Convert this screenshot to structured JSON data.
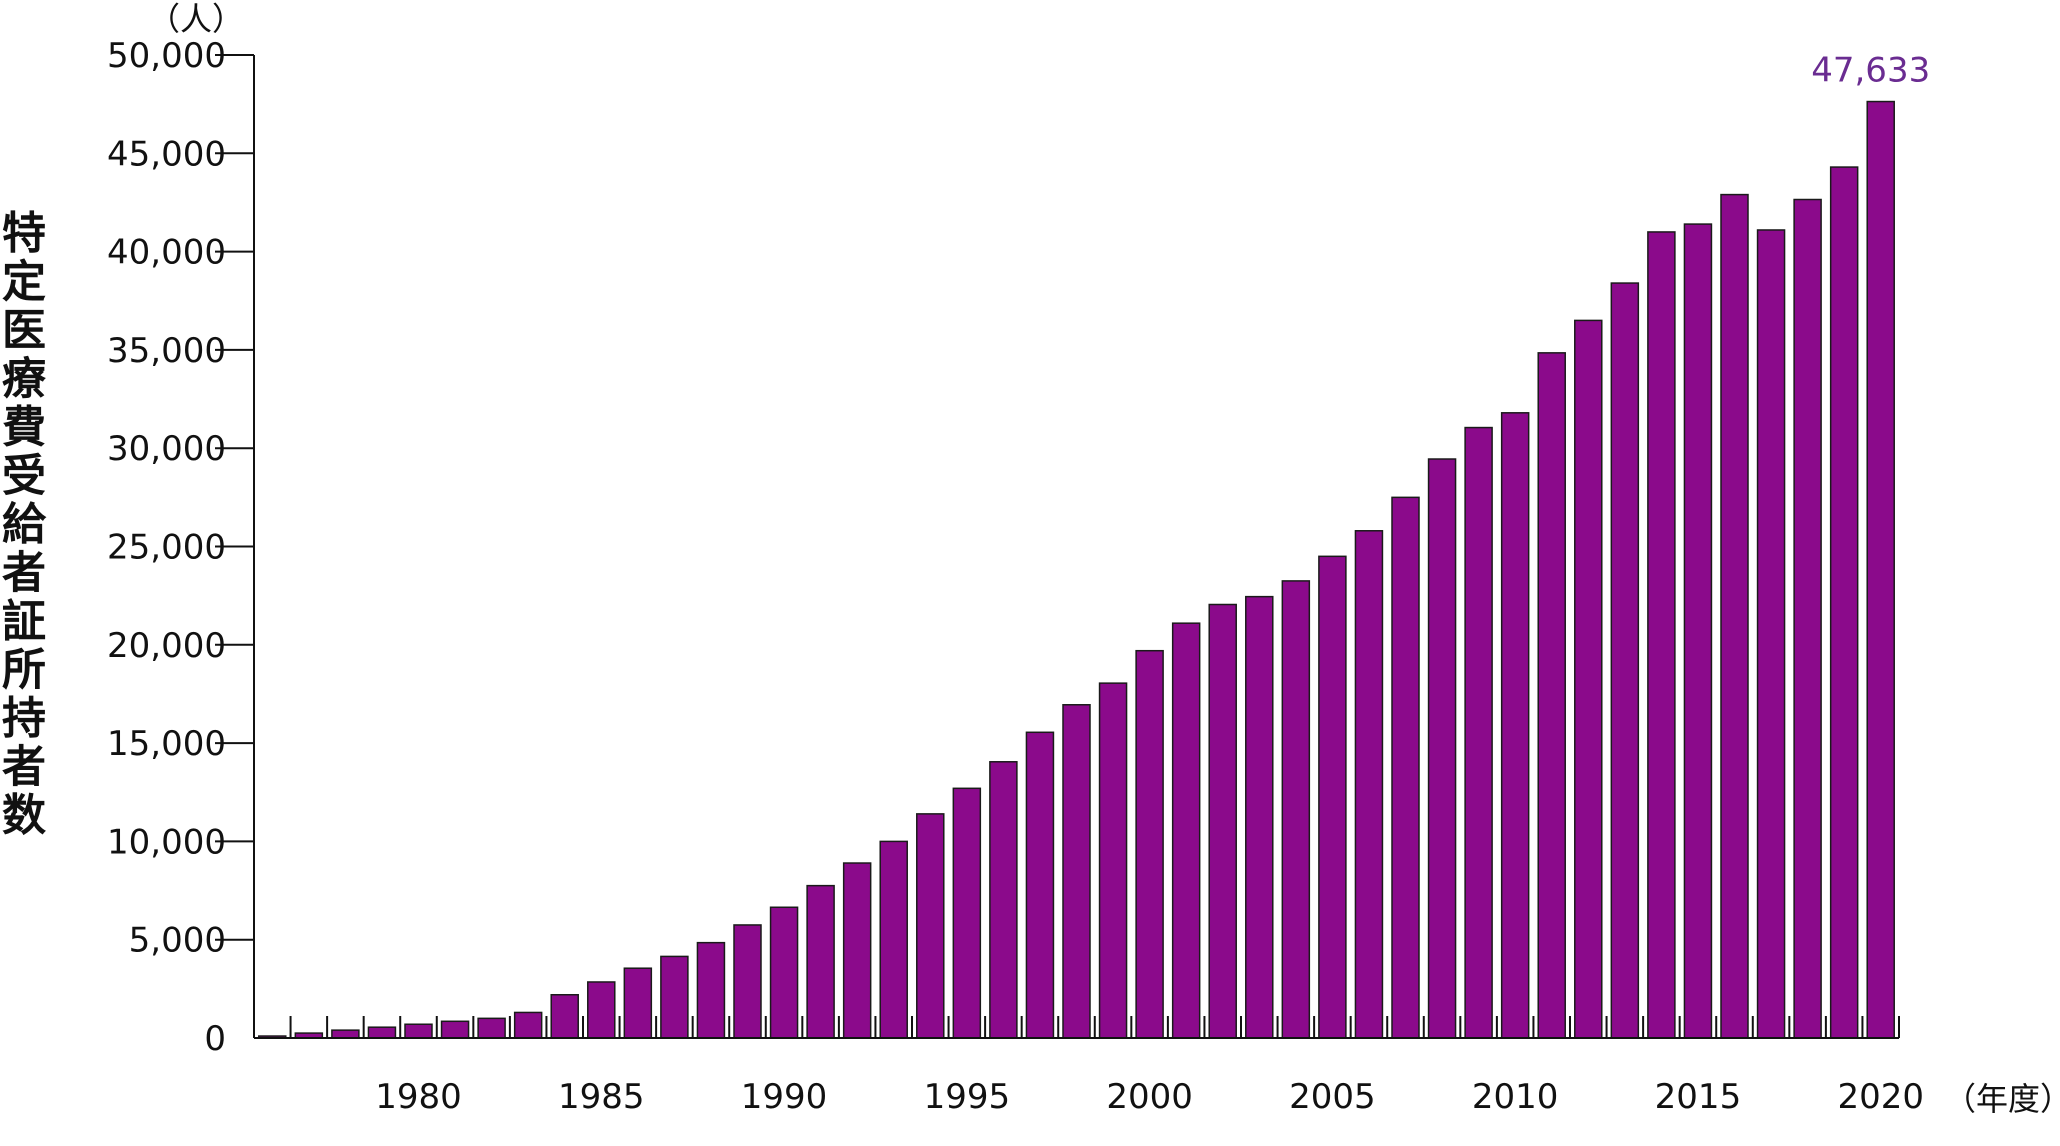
{
  "chart_data": {
    "type": "bar",
    "title": "",
    "ylabel": "特定医療費受給者証所持者数",
    "y_unit": "（人）",
    "x_unit": "（年度）",
    "ylim": [
      0,
      50000
    ],
    "yticks": [
      0,
      5000,
      10000,
      15000,
      20000,
      25000,
      30000,
      35000,
      40000,
      45000,
      50000
    ],
    "ytick_labels": [
      "0",
      "5,000",
      "10,000",
      "15,000",
      "20,000",
      "25,000",
      "30,000",
      "35,000",
      "40,000",
      "45,000",
      "50,000"
    ],
    "xtick_labels": [
      "1980",
      "1985",
      "1990",
      "1995",
      "2000",
      "2005",
      "2010",
      "2015",
      "2020"
    ],
    "categories": [
      1976,
      1977,
      1978,
      1979,
      1980,
      1981,
      1982,
      1983,
      1984,
      1985,
      1986,
      1987,
      1988,
      1989,
      1990,
      1991,
      1992,
      1993,
      1994,
      1995,
      1996,
      1997,
      1998,
      1999,
      2000,
      2001,
      2002,
      2003,
      2004,
      2005,
      2006,
      2007,
      2008,
      2009,
      2010,
      2011,
      2012,
      2013,
      2014,
      2015,
      2016,
      2017,
      2018,
      2019,
      2020
    ],
    "values": [
      100,
      250,
      400,
      550,
      700,
      850,
      1000,
      1300,
      2200,
      2850,
      3550,
      4150,
      4850,
      5750,
      6650,
      7750,
      8900,
      10000,
      11400,
      12700,
      14050,
      15550,
      16950,
      18050,
      19700,
      21100,
      22050,
      22450,
      23250,
      24500,
      25800,
      27500,
      29450,
      31050,
      31800,
      34850,
      36500,
      38400,
      41000,
      41400,
      42900,
      41100,
      42650,
      44300,
      47633
    ],
    "callout": {
      "category": 2020,
      "label": "47,633"
    },
    "colors": {
      "bar": "#8B0A8B",
      "bar_edge": "#1a1a1a",
      "callout": "#6A2C91",
      "axis": "#111111"
    },
    "grid": false,
    "legend": "none"
  }
}
